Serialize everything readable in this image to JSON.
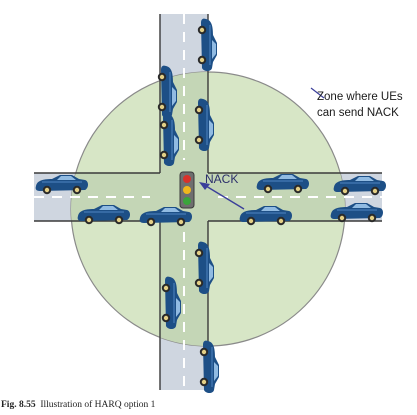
{
  "diagram": {
    "zone_label_line1": "Zone where UEs",
    "zone_label_line2": "can send NACK",
    "nack_label": "NACK",
    "colors": {
      "zone_fill": "#d7e6c6",
      "zone_stroke": "#8a8a8a",
      "road": "#cfd6e0",
      "road_edge": "#3a3a3a",
      "arrow": "#3b3f9a",
      "car_body": "#1d4f86",
      "light_red": "#d8312a",
      "light_yellow": "#f0b71c",
      "light_green": "#3aa53b"
    }
  },
  "caption": {
    "number": "Fig. 8.55",
    "text": "Illustration of HARQ option 1"
  }
}
